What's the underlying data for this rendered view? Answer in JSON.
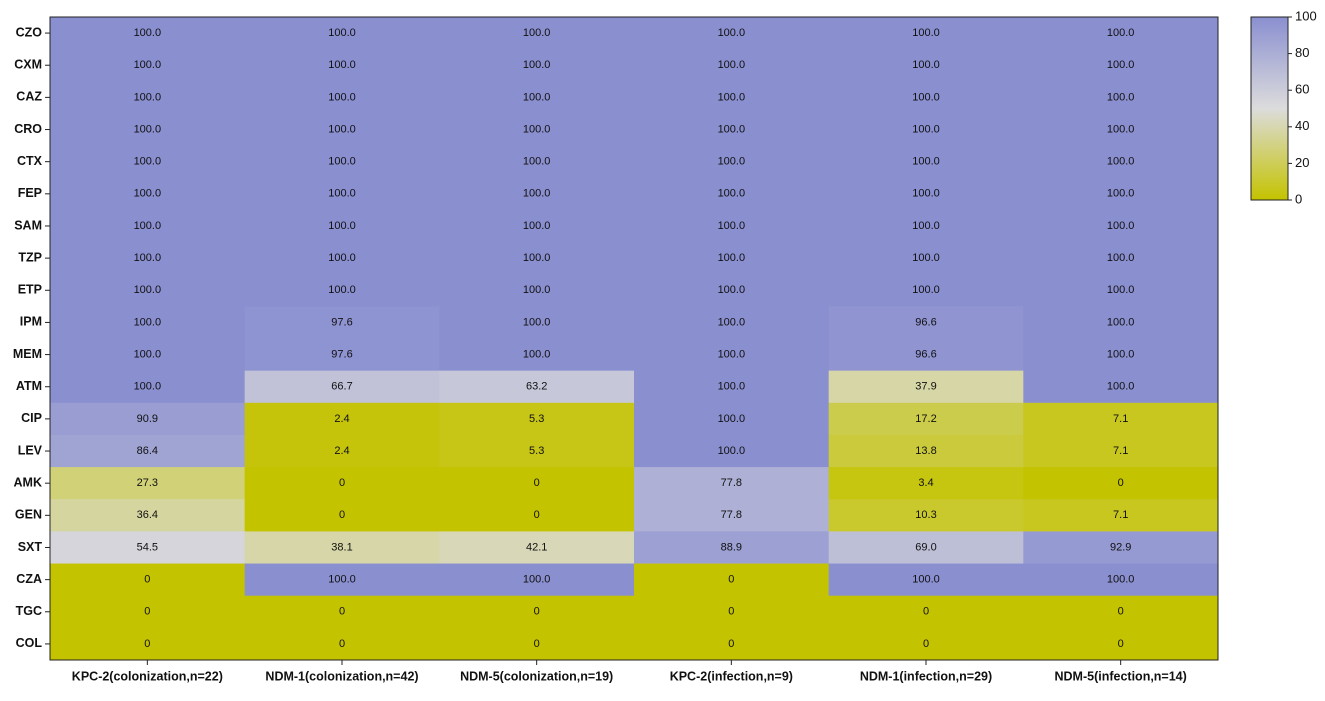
{
  "chart_data": {
    "type": "heatmap",
    "rows": [
      "CZO",
      "CXM",
      "CAZ",
      "CRO",
      "CTX",
      "FEP",
      "SAM",
      "TZP",
      "ETP",
      "IPM",
      "MEM",
      "ATM",
      "CIP",
      "LEV",
      "AMK",
      "GEN",
      "SXT",
      "CZA",
      "TGC",
      "COL"
    ],
    "columns": [
      "KPC-2(colonization,n=22)",
      "NDM-1(colonization,n=42)",
      "NDM-5(colonization,n=19)",
      "KPC-2(infection,n=9)",
      "NDM-1(infection,n=29)",
      "NDM-5(infection,n=14)"
    ],
    "values": [
      [
        100,
        100,
        100,
        100,
        100,
        100
      ],
      [
        100,
        100,
        100,
        100,
        100,
        100
      ],
      [
        100,
        100,
        100,
        100,
        100,
        100
      ],
      [
        100,
        100,
        100,
        100,
        100,
        100
      ],
      [
        100,
        100,
        100,
        100,
        100,
        100
      ],
      [
        100,
        100,
        100,
        100,
        100,
        100
      ],
      [
        100,
        100,
        100,
        100,
        100,
        100
      ],
      [
        100,
        100,
        100,
        100,
        100,
        100
      ],
      [
        100,
        100,
        100,
        100,
        100,
        100
      ],
      [
        100,
        97.6,
        100,
        100,
        96.6,
        100
      ],
      [
        100,
        97.6,
        100,
        100,
        96.6,
        100
      ],
      [
        100,
        66.7,
        63.2,
        100,
        37.9,
        100
      ],
      [
        90.9,
        2.4,
        5.3,
        100,
        17.2,
        7.1
      ],
      [
        86.4,
        2.4,
        5.3,
        100,
        13.8,
        7.1
      ],
      [
        27.3,
        0,
        0,
        77.8,
        3.4,
        0
      ],
      [
        36.4,
        0,
        0,
        77.8,
        10.3,
        7.1
      ],
      [
        54.5,
        38.1,
        42.1,
        88.9,
        69.0,
        92.9
      ],
      [
        0,
        100,
        100,
        0,
        100,
        100
      ],
      [
        0,
        0,
        0,
        0,
        0,
        0
      ],
      [
        0,
        0,
        0,
        0,
        0,
        0
      ]
    ],
    "value_labels": [
      [
        "100.0",
        "100.0",
        "100.0",
        "100.0",
        "100.0",
        "100.0"
      ],
      [
        "100.0",
        "100.0",
        "100.0",
        "100.0",
        "100.0",
        "100.0"
      ],
      [
        "100.0",
        "100.0",
        "100.0",
        "100.0",
        "100.0",
        "100.0"
      ],
      [
        "100.0",
        "100.0",
        "100.0",
        "100.0",
        "100.0",
        "100.0"
      ],
      [
        "100.0",
        "100.0",
        "100.0",
        "100.0",
        "100.0",
        "100.0"
      ],
      [
        "100.0",
        "100.0",
        "100.0",
        "100.0",
        "100.0",
        "100.0"
      ],
      [
        "100.0",
        "100.0",
        "100.0",
        "100.0",
        "100.0",
        "100.0"
      ],
      [
        "100.0",
        "100.0",
        "100.0",
        "100.0",
        "100.0",
        "100.0"
      ],
      [
        "100.0",
        "100.0",
        "100.0",
        "100.0",
        "100.0",
        "100.0"
      ],
      [
        "100.0",
        "97.6",
        "100.0",
        "100.0",
        "96.6",
        "100.0"
      ],
      [
        "100.0",
        "97.6",
        "100.0",
        "100.0",
        "96.6",
        "100.0"
      ],
      [
        "100.0",
        "66.7",
        "63.2",
        "100.0",
        "37.9",
        "100.0"
      ],
      [
        "90.9",
        "2.4",
        "5.3",
        "100.0",
        "17.2",
        "7.1"
      ],
      [
        "86.4",
        "2.4",
        "5.3",
        "100.0",
        "13.8",
        "7.1"
      ],
      [
        "27.3",
        "0",
        "0",
        "77.8",
        "3.4",
        "0"
      ],
      [
        "36.4",
        "0",
        "0",
        "77.8",
        "10.3",
        "7.1"
      ],
      [
        "54.5",
        "38.1",
        "42.1",
        "88.9",
        "69.0",
        "92.9"
      ],
      [
        "0",
        "100.0",
        "100.0",
        "0",
        "100.0",
        "100.0"
      ],
      [
        "0",
        "0",
        "0",
        "0",
        "0",
        "0"
      ],
      [
        "0",
        "0",
        "0",
        "0",
        "0",
        "0"
      ]
    ],
    "colorscale": [
      "#c4c300",
      "#dcdcdc",
      "#8a8fd0"
    ],
    "zlim": [
      0,
      100
    ],
    "zticks": [
      0,
      20,
      40,
      60,
      80,
      100
    ]
  }
}
